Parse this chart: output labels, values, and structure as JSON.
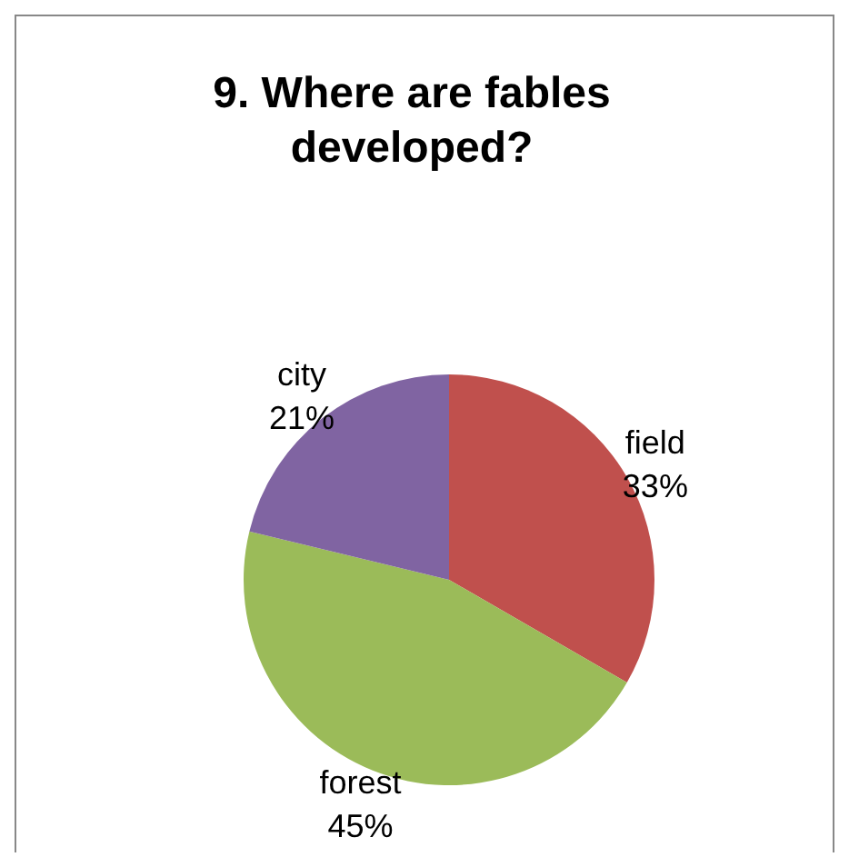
{
  "chart_data": {
    "type": "pie",
    "title": "9. Where are fables developed?",
    "categories": [
      "field",
      "forest",
      "city"
    ],
    "values": [
      33,
      45,
      21
    ],
    "value_labels": [
      "33%",
      "45%",
      "21%"
    ],
    "colors": [
      "#c0504d",
      "#9bbb59",
      "#8064a2"
    ]
  }
}
